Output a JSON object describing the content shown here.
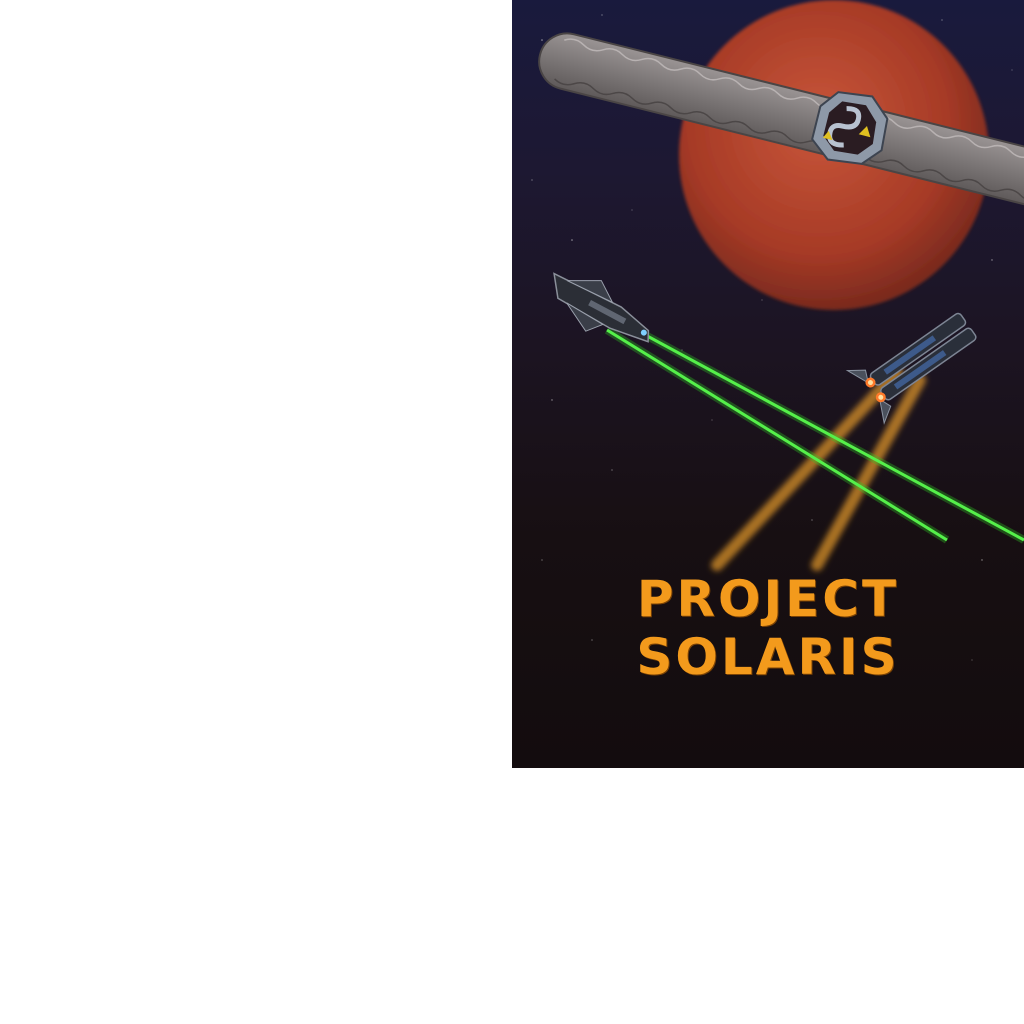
{
  "poster": {
    "title": "PROJECT SOLARIS",
    "body_text": "",
    "colors": {
      "title": "#f39a1c",
      "planet": "#b5412a",
      "laser": "#43e03a",
      "exhaust": "#e59a2c",
      "space_top": "#191a3d",
      "space_bottom": "#130c0e"
    },
    "icons": [
      "planet",
      "orbital-station",
      "fighter-ship",
      "cruiser-ship",
      "laser-beam"
    ]
  }
}
